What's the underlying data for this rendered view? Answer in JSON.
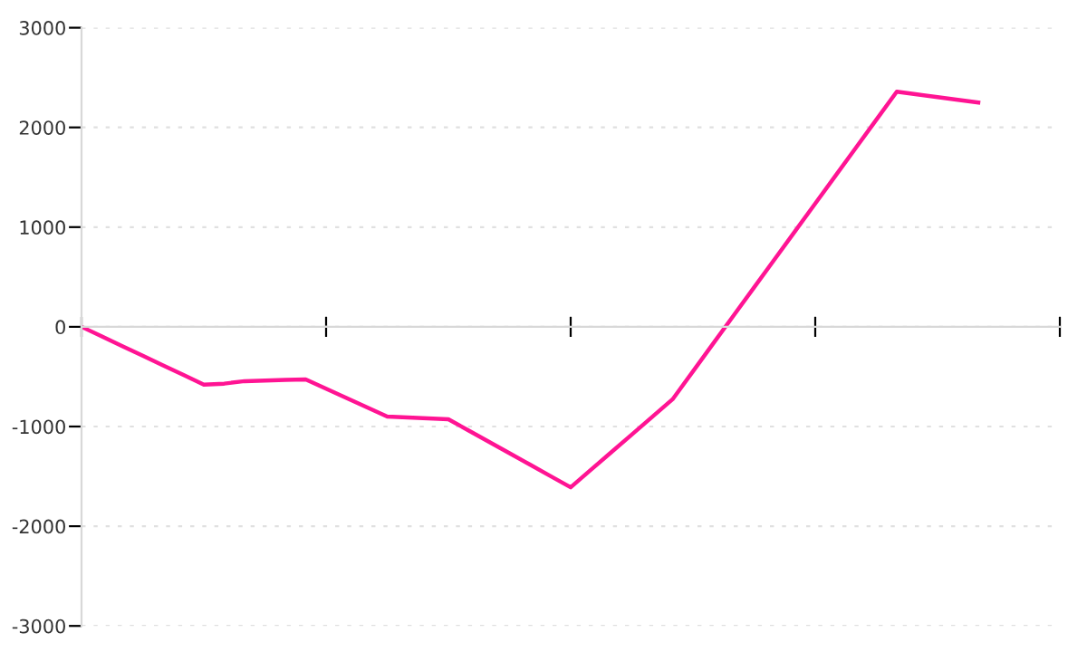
{
  "chart_data": {
    "type": "line",
    "categories": [
      null,
      null,
      null,
      null,
      null,
      null,
      null,
      null,
      null,
      null,
      null,
      null,
      null,
      null,
      null,
      null,
      null,
      null,
      null,
      null,
      null,
      null,
      null,
      null,
      null,
      null,
      null,
      null,
      null,
      null,
      null,
      null,
      null,
      null,
      null,
      null,
      null,
      null,
      null,
      null,
      null,
      null,
      null,
      null,
      null,
      null,
      null,
      null,
      null
    ],
    "series": [
      {
        "color": "#ff1493",
        "values": [
          0,
          -97,
          -193,
          -290,
          -387,
          -483,
          -580,
          -570,
          -545,
          -539,
          -533,
          -527,
          -620,
          -714,
          -807,
          -900,
          -909,
          -918,
          -927,
          -1041,
          -1155,
          -1268,
          -1382,
          -1496,
          -1610,
          -1433,
          -1257,
          -1080,
          -904,
          -727,
          -447,
          -166,
          115,
          395,
          676,
          956,
          1237,
          1517,
          1798,
          2078,
          2358,
          2331,
          2304,
          2276,
          2249,
          null,
          null,
          null,
          null
        ]
      }
    ],
    "ylim": [
      -3000,
      3000
    ],
    "yticks": [
      -3000,
      -2000,
      -1000,
      0,
      1000,
      2000,
      3000
    ],
    "grid": "y",
    "marker": "none",
    "line_style": "solid"
  }
}
